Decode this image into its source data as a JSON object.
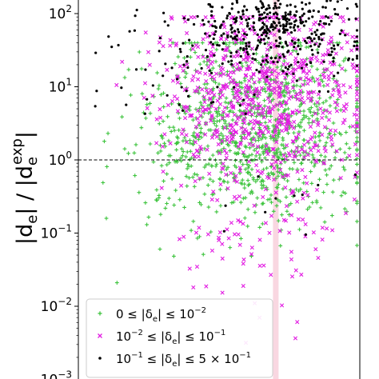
{
  "chart_data": {
    "type": "scatter",
    "title": "",
    "xlabel": "",
    "ylabel": {
      "main": "|d",
      "sub_e": "e",
      "sep": "| / |d",
      "sup_exp": "exp",
      "end": "|"
    },
    "yscale": "log",
    "ylim": [
      0.001,
      200
    ],
    "ytick_values": [
      0.001,
      0.01,
      0.1,
      1,
      10,
      100
    ],
    "ytick_labels": [
      {
        "base": "10",
        "exp": "−3"
      },
      {
        "base": "10",
        "exp": "−2"
      },
      {
        "base": "10",
        "exp": "−1"
      },
      {
        "base": "10",
        "exp": "0"
      },
      {
        "base": "10",
        "exp": "1"
      },
      {
        "base": "10",
        "exp": "2"
      }
    ],
    "x_ticks_shown": false,
    "reference_line": {
      "y": 1,
      "style": "dashed",
      "color": "#000000"
    },
    "vertical_band": {
      "x_frac": 0.7,
      "color": "#f4b6c8"
    },
    "legend_position": "lower-left",
    "series": [
      {
        "name": "0 ≤ |δe| ≤ 10⁻²",
        "label_parts": {
          "pre": "0 ≤ |δ",
          "sub": "e",
          "mid": "| ≤ 10",
          "sup": "−2"
        },
        "marker": "plus",
        "color": "#3ec43e",
        "n": 1000,
        "logy_range": [
          -2.85,
          1.6
        ]
      },
      {
        "name": "10⁻² ≤ |δe| ≤ 10⁻¹",
        "label_parts": {
          "pre": "10",
          "pre_sup": "−2",
          "mid1": " ≤ |δ",
          "sub": "e",
          "mid2": "| ≤ 10",
          "sup": "−1"
        },
        "marker": "x",
        "color": "#e21ce2",
        "n": 850,
        "logy_range": [
          -2.5,
          1.95
        ]
      },
      {
        "name": "10⁻¹ ≤ |δe| ≤ 5 × 10⁻¹",
        "label_parts": {
          "pre": "10",
          "pre_sup": "−1",
          "mid1": " ≤ |δ",
          "sub": "e",
          "mid2": "| ≤ 5 × 10",
          "sup": "−1"
        },
        "marker": "dot",
        "color": "#000000",
        "n": 520,
        "logy_range": [
          -1.2,
          2.3
        ]
      }
    ]
  }
}
